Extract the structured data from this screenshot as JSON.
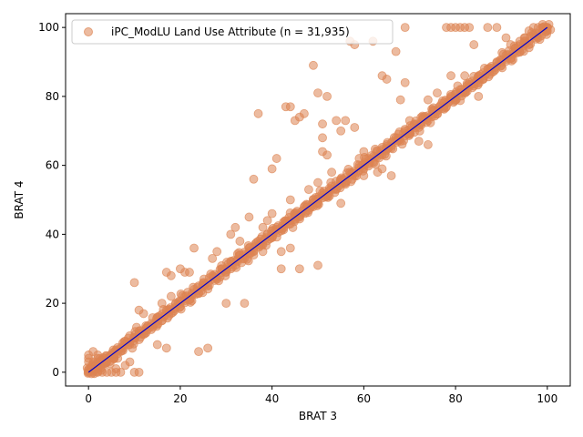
{
  "chart_data": {
    "type": "scatter",
    "xlabel": "BRAT 3",
    "ylabel": "BRAT 4",
    "xlim": [
      -5,
      105
    ],
    "ylim": [
      -4,
      104
    ],
    "xticks": [
      0,
      20,
      40,
      60,
      80,
      100
    ],
    "yticks": [
      0,
      20,
      40,
      60,
      80,
      100
    ],
    "grid": false,
    "legend_position": "top-left",
    "series": [
      {
        "name": "iPC_ModLU Land Use Attribute (n = 31,935)",
        "color": "#dd8452",
        "opacity": 0.55,
        "marker": "circle",
        "main_trend_sample_points": [
          [
            0,
            0
          ],
          [
            0.5,
            1
          ],
          [
            1,
            0.3
          ],
          [
            1.5,
            2
          ],
          [
            2,
            1.5
          ],
          [
            2.5,
            3
          ],
          [
            3,
            2.5
          ],
          [
            3.5,
            4
          ],
          [
            4,
            3
          ],
          [
            5,
            5
          ],
          [
            5.5,
            4
          ],
          [
            6,
            6.5
          ],
          [
            7,
            6
          ],
          [
            8,
            9
          ],
          [
            9,
            8
          ],
          [
            10,
            10
          ],
          [
            11,
            12
          ],
          [
            12,
            11
          ],
          [
            13,
            13.5
          ],
          [
            14,
            13
          ],
          [
            15,
            16
          ],
          [
            16,
            15
          ],
          [
            17,
            18
          ],
          [
            18,
            17
          ],
          [
            19,
            20
          ],
          [
            20,
            19
          ],
          [
            21,
            22
          ],
          [
            22,
            21
          ],
          [
            23,
            24
          ],
          [
            24,
            23
          ],
          [
            25,
            26
          ],
          [
            26,
            25
          ],
          [
            27,
            28
          ],
          [
            28,
            27
          ],
          [
            29,
            30
          ],
          [
            30,
            29
          ],
          [
            31,
            32
          ],
          [
            32,
            31
          ],
          [
            33,
            34
          ],
          [
            34,
            33
          ],
          [
            35,
            36
          ],
          [
            36,
            35
          ],
          [
            37,
            38
          ],
          [
            38,
            37
          ],
          [
            39,
            40
          ],
          [
            40,
            39
          ],
          [
            41,
            42
          ],
          [
            42,
            41
          ],
          [
            43,
            44
          ],
          [
            44,
            43
          ],
          [
            45,
            46
          ],
          [
            46,
            45
          ],
          [
            47,
            48
          ],
          [
            48,
            47
          ],
          [
            49,
            50
          ],
          [
            50,
            49
          ],
          [
            51,
            52
          ],
          [
            52,
            51
          ],
          [
            53,
            54
          ],
          [
            54,
            53
          ],
          [
            55,
            56
          ],
          [
            56,
            55
          ],
          [
            57,
            58
          ],
          [
            58,
            57
          ],
          [
            59,
            60
          ],
          [
            60,
            59
          ],
          [
            61,
            62
          ],
          [
            62,
            61
          ],
          [
            63,
            64
          ],
          [
            64,
            63
          ],
          [
            65,
            66
          ],
          [
            66,
            65
          ],
          [
            67,
            68
          ],
          [
            68,
            67
          ],
          [
            69,
            70
          ],
          [
            70,
            69
          ],
          [
            71,
            72
          ],
          [
            72,
            71
          ],
          [
            73,
            74
          ],
          [
            74,
            73
          ],
          [
            75,
            76
          ],
          [
            76,
            75
          ],
          [
            77,
            78
          ],
          [
            78,
            77
          ],
          [
            79,
            80
          ],
          [
            80,
            79
          ],
          [
            81,
            82
          ],
          [
            82,
            81
          ],
          [
            83,
            84
          ],
          [
            84,
            83
          ],
          [
            85,
            86
          ],
          [
            86,
            85
          ],
          [
            87,
            88
          ],
          [
            88,
            87
          ],
          [
            89,
            90
          ],
          [
            90,
            89
          ],
          [
            91,
            92
          ],
          [
            92,
            91
          ],
          [
            93,
            94
          ],
          [
            94,
            93
          ],
          [
            95,
            96
          ],
          [
            96,
            95
          ],
          [
            97,
            98
          ],
          [
            98,
            97
          ],
          [
            99,
            100
          ],
          [
            100,
            99
          ],
          [
            100,
            100
          ]
        ],
        "outlier_points": [
          [
            0,
            0
          ],
          [
            1,
            0
          ],
          [
            2,
            0
          ],
          [
            3,
            0
          ],
          [
            4,
            0
          ],
          [
            5,
            0
          ],
          [
            6,
            0
          ],
          [
            7,
            0
          ],
          [
            10,
            0
          ],
          [
            11,
            0
          ],
          [
            6,
            1
          ],
          [
            8,
            2
          ],
          [
            9,
            3
          ],
          [
            0,
            3
          ],
          [
            0,
            4
          ],
          [
            0,
            5
          ],
          [
            1,
            6
          ],
          [
            2,
            4
          ],
          [
            2,
            5
          ],
          [
            10,
            26
          ],
          [
            11,
            18
          ],
          [
            12,
            17
          ],
          [
            15,
            8
          ],
          [
            17,
            7
          ],
          [
            16,
            20
          ],
          [
            17,
            29
          ],
          [
            18,
            22
          ],
          [
            18,
            28
          ],
          [
            20,
            30
          ],
          [
            21,
            29
          ],
          [
            22,
            29
          ],
          [
            23,
            36
          ],
          [
            24,
            6
          ],
          [
            26,
            7
          ],
          [
            27,
            33
          ],
          [
            28,
            35
          ],
          [
            29,
            30
          ],
          [
            30,
            20
          ],
          [
            31,
            40
          ],
          [
            32,
            42
          ],
          [
            33,
            38
          ],
          [
            34,
            20
          ],
          [
            35,
            45
          ],
          [
            36,
            56
          ],
          [
            37,
            75
          ],
          [
            38,
            42
          ],
          [
            39,
            44
          ],
          [
            40,
            46
          ],
          [
            40,
            59
          ],
          [
            41,
            62
          ],
          [
            42,
            30
          ],
          [
            42,
            35
          ],
          [
            44,
            36
          ],
          [
            44,
            50
          ],
          [
            45,
            45
          ],
          [
            45,
            73
          ],
          [
            46,
            74
          ],
          [
            46,
            30
          ],
          [
            47,
            75
          ],
          [
            48,
            53
          ],
          [
            49,
            48
          ],
          [
            49,
            89
          ],
          [
            50,
            31
          ],
          [
            50,
            55
          ],
          [
            51,
            72
          ],
          [
            51,
            64
          ],
          [
            51,
            68
          ],
          [
            52,
            63
          ],
          [
            52,
            80
          ],
          [
            53,
            58
          ],
          [
            54,
            73
          ],
          [
            55,
            49
          ],
          [
            55,
            70
          ],
          [
            56,
            55
          ],
          [
            57,
            96
          ],
          [
            58,
            95
          ],
          [
            59,
            62
          ],
          [
            60,
            64
          ],
          [
            60,
            57
          ],
          [
            62,
            96
          ],
          [
            64,
            86
          ],
          [
            65,
            85
          ],
          [
            66,
            57
          ],
          [
            67,
            93
          ],
          [
            68,
            79
          ],
          [
            70,
            73
          ],
          [
            69,
            84
          ],
          [
            69,
            100
          ],
          [
            74,
            79
          ],
          [
            78,
            100
          ],
          [
            79,
            100
          ],
          [
            79,
            86
          ],
          [
            80,
            100
          ],
          [
            81,
            100
          ],
          [
            82,
            100
          ],
          [
            83,
            100
          ],
          [
            84,
            95
          ],
          [
            85,
            80
          ],
          [
            87,
            100
          ],
          [
            89,
            100
          ],
          [
            91,
            97
          ],
          [
            92,
            95
          ],
          [
            93,
            94
          ],
          [
            94,
            96
          ],
          [
            95,
            97
          ],
          [
            96,
            99
          ],
          [
            97,
            100
          ],
          [
            98,
            100
          ],
          [
            99,
            100
          ],
          [
            100,
            100
          ],
          [
            43,
            77
          ],
          [
            44,
            77
          ],
          [
            50,
            81
          ],
          [
            56,
            73
          ],
          [
            58,
            71
          ],
          [
            76,
            81
          ],
          [
            82,
            86
          ],
          [
            86,
            85
          ],
          [
            72,
            67
          ],
          [
            74,
            66
          ],
          [
            63,
            58
          ],
          [
            64,
            59
          ],
          [
            36,
            34
          ],
          [
            38,
            35
          ]
        ]
      }
    ],
    "reference_line": {
      "x": [
        0,
        100
      ],
      "y": [
        0,
        100
      ],
      "color": "#0000cc"
    }
  }
}
